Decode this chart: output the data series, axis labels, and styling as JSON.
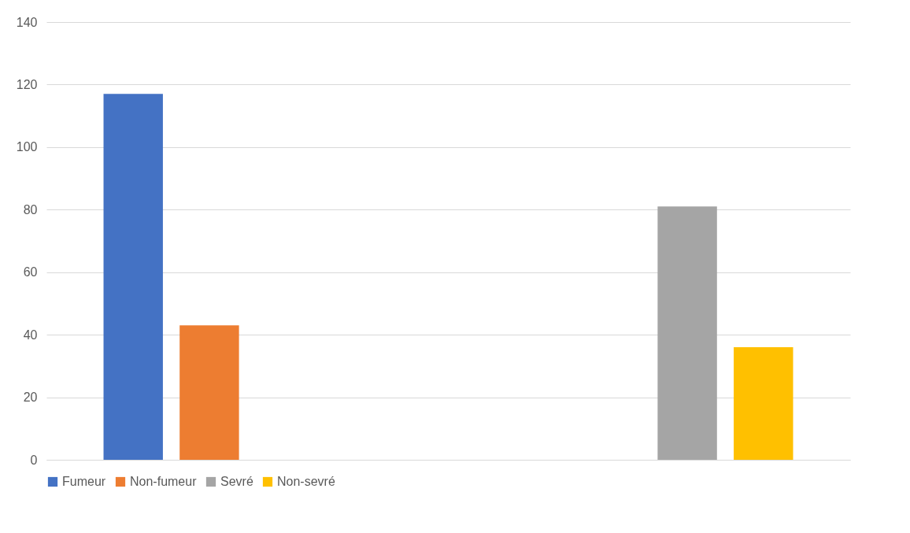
{
  "chart_data": {
    "type": "bar",
    "categories": [
      null,
      null
    ],
    "series": [
      {
        "name": "Fumeur",
        "color": "#4472c4",
        "values": [
          117,
          null
        ]
      },
      {
        "name": "Non-fumeur",
        "color": "#ed7d31",
        "values": [
          43,
          null
        ]
      },
      {
        "name": "Sevré",
        "color": "#a5a5a5",
        "values": [
          null,
          81
        ]
      },
      {
        "name": "Non-sevré",
        "color": "#ffc000",
        "values": [
          null,
          36
        ]
      }
    ],
    "ylim": [
      0,
      140
    ],
    "yticks": [
      0,
      20,
      40,
      60,
      80,
      100,
      120,
      140
    ],
    "grid": "y",
    "legend": "bottom"
  }
}
